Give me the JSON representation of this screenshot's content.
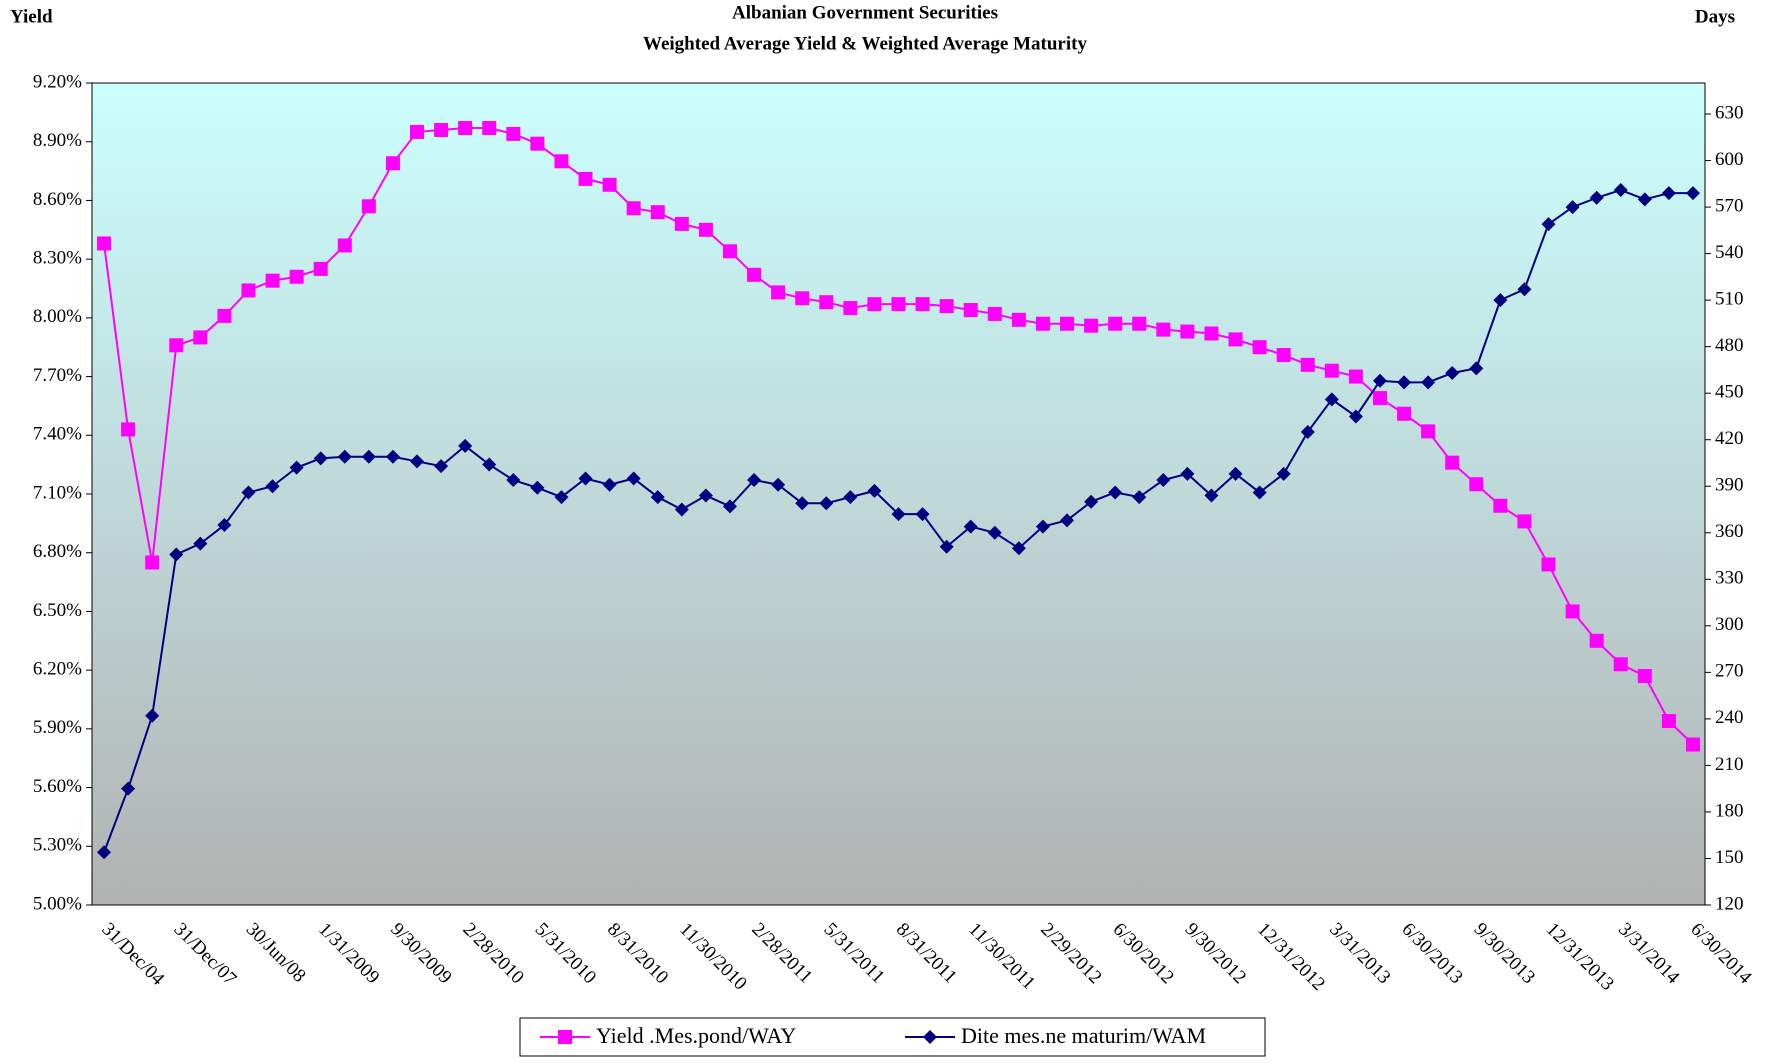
{
  "chart_data": {
    "type": "line",
    "title": "Albanian Government Securities",
    "subtitle": "Weighted Average Yield & Weighted Average Maturity",
    "y_label": "Yield",
    "y2_label": "Days",
    "categories": [
      "31/Dec/04",
      null,
      null,
      "31/Dec/07",
      null,
      null,
      "30/Jun/08",
      null,
      null,
      "1/31/2009",
      null,
      null,
      "9/30/2009",
      null,
      null,
      "2/28/2010",
      null,
      null,
      "5/31/2010",
      null,
      null,
      "8/31/2010",
      null,
      null,
      "11/30/2010",
      null,
      null,
      "2/28/2011",
      null,
      null,
      "5/31/2011",
      null,
      null,
      "8/31/2011",
      null,
      null,
      "11/30/2011",
      null,
      null,
      "2/29/2012",
      null,
      null,
      "6/30/2012",
      null,
      null,
      "9/30/2012",
      null,
      null,
      "12/31/2012",
      null,
      null,
      "3/31/2013",
      null,
      null,
      "6/30/2013",
      null,
      null,
      "9/30/2013",
      null,
      null,
      "12/31/2013",
      null,
      null,
      "3/31/2014",
      null,
      null,
      "6/30/2014"
    ],
    "series": [
      {
        "name": "Yield .Mes.pond/WAY",
        "color": "#ff00ff",
        "marker": "square",
        "values": [
          8.38,
          7.43,
          6.75,
          7.86,
          7.9,
          8.01,
          8.14,
          8.19,
          8.21,
          8.25,
          8.37,
          8.57,
          8.79,
          8.95,
          8.96,
          8.97,
          8.97,
          8.94,
          8.89,
          8.8,
          8.71,
          8.68,
          8.56,
          8.54,
          8.48,
          8.45,
          8.34,
          8.22,
          8.13,
          8.1,
          8.08,
          8.05,
          8.07,
          8.07,
          8.07,
          8.06,
          8.04,
          8.02,
          7.99,
          7.97,
          7.97,
          7.96,
          7.97,
          7.97,
          7.94,
          7.93,
          7.92,
          7.89,
          7.85,
          7.81,
          7.76,
          7.73,
          7.7,
          7.59,
          7.51,
          7.42,
          7.26,
          7.15,
          7.04,
          6.96,
          6.74,
          6.5,
          6.35,
          6.23,
          6.17,
          5.94,
          5.82
        ]
      },
      {
        "name": "Dite mes.ne maturim/WAM",
        "color": "#000080",
        "marker": "diamond",
        "axis": "y2",
        "values": [
          154,
          195,
          242,
          346,
          353,
          365,
          386,
          390,
          402,
          408,
          409,
          409,
          409,
          406,
          403,
          416,
          404,
          394,
          389,
          383,
          395,
          391,
          395,
          383,
          375,
          384,
          377,
          394,
          391,
          379,
          379,
          383,
          387,
          372,
          372,
          351,
          364,
          360,
          350,
          364,
          368,
          380,
          386,
          383,
          394,
          398,
          384,
          398,
          386,
          398,
          425,
          446,
          435,
          458,
          457,
          457,
          463,
          466,
          510,
          517,
          559,
          570,
          576,
          581,
          575,
          579,
          579
        ]
      }
    ],
    "ylim": [
      5.0,
      9.2
    ],
    "yticks": [
      {
        "value": 5.0,
        "label": "5.00%"
      },
      {
        "value": 5.3,
        "label": "5.30%"
      },
      {
        "value": 5.6,
        "label": "5.60%"
      },
      {
        "value": 5.9,
        "label": "5.90%"
      },
      {
        "value": 6.2,
        "label": "6.20%"
      },
      {
        "value": 6.5,
        "label": "6.50%"
      },
      {
        "value": 6.8,
        "label": "6.80%"
      },
      {
        "value": 7.1,
        "label": "7.10%"
      },
      {
        "value": 7.4,
        "label": "7.40%"
      },
      {
        "value": 7.7,
        "label": "7.70%"
      },
      {
        "value": 8.0,
        "label": "8.00%"
      },
      {
        "value": 8.3,
        "label": "8.30%"
      },
      {
        "value": 8.6,
        "label": "8.60%"
      },
      {
        "value": 8.9,
        "label": "8.90%"
      },
      {
        "value": 9.2,
        "label": "9.20%"
      }
    ],
    "y2lim": [
      120,
      650
    ],
    "y2ticks": [
      120,
      150,
      180,
      210,
      240,
      270,
      300,
      330,
      360,
      390,
      420,
      450,
      480,
      510,
      540,
      570,
      600,
      630
    ],
    "grid": false,
    "legend": "bottom"
  }
}
